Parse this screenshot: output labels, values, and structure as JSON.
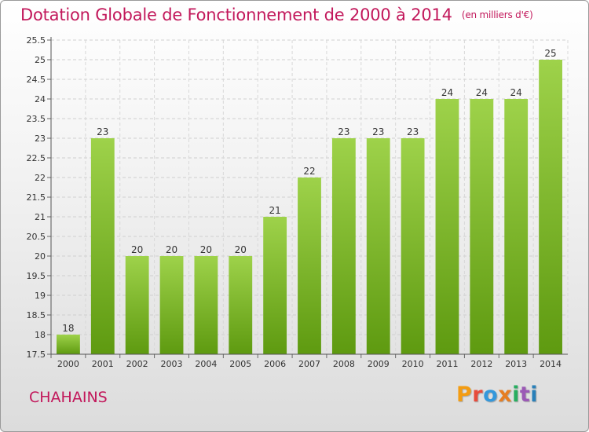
{
  "header": {
    "title": "Dotation Globale de Fonctionnement de 2000 à 2014",
    "unit": "(en milliers d'€)"
  },
  "footer": {
    "commune": "CHAHAINS",
    "logo": [
      "P",
      "r",
      "o",
      "x",
      "i",
      "t",
      "i"
    ]
  },
  "colors": {
    "title": "#c2185b",
    "bar_light": "#9ed24a",
    "bar_dark": "#5e9a10",
    "logo": [
      "#f39c12",
      "#e74c3c",
      "#3498db",
      "#e67e22",
      "#27ae60",
      "#9b59b6",
      "#2980b9"
    ]
  },
  "chart_data": {
    "type": "bar",
    "title": "Dotation Globale de Fonctionnement de 2000 à 2014",
    "subtitle": "(en milliers d'€)",
    "categories": [
      "2000",
      "2001",
      "2002",
      "2003",
      "2004",
      "2005",
      "2006",
      "2007",
      "2008",
      "2009",
      "2010",
      "2011",
      "2012",
      "2013",
      "2014"
    ],
    "values": [
      18,
      23,
      20,
      20,
      20,
      20,
      21,
      22,
      23,
      23,
      23,
      24,
      24,
      24,
      25
    ],
    "data_labels": [
      "18",
      "23",
      "20",
      "20",
      "20",
      "20",
      "21",
      "22",
      "23",
      "23",
      "23",
      "24",
      "24",
      "24",
      "25"
    ],
    "yticks": [
      "17.5",
      "18",
      "18.5",
      "19",
      "19.5",
      "20",
      "20.5",
      "21",
      "21.5",
      "22",
      "22.5",
      "23",
      "23.5",
      "24",
      "24.5",
      "25",
      "25.5"
    ],
    "ylim": [
      17.5,
      25.5
    ],
    "grid": true,
    "xlabel": "",
    "ylabel": ""
  }
}
